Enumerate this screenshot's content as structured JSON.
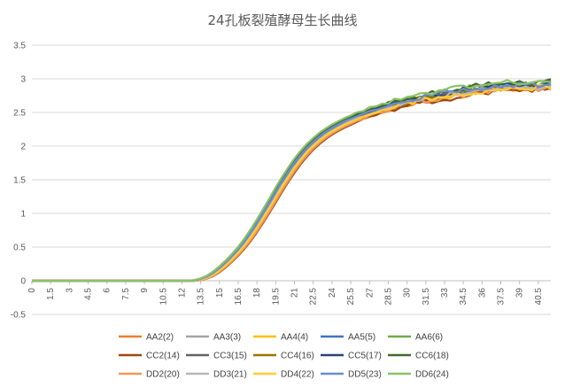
{
  "chart_data": {
    "type": "line",
    "title": "24孔板裂殖酵母生长曲线",
    "xlabel": "",
    "ylabel": "",
    "ylim": [
      -0.5,
      3.5
    ],
    "yticks": [
      "-0.5",
      "0",
      "0.5",
      "1",
      "1.5",
      "2",
      "2.5",
      "3",
      "3.5"
    ],
    "xrange": [
      0,
      41.5
    ],
    "xticks": [
      "0",
      "1.5",
      "3",
      "4.5",
      "6",
      "7.5",
      "9",
      "10.5",
      "12",
      "13.5",
      "15",
      "16.5",
      "18",
      "19.5",
      "21",
      "22.5",
      "24",
      "25.5",
      "27",
      "28.5",
      "30",
      "31.5",
      "33",
      "34.5",
      "36",
      "37.5",
      "39",
      "40.5"
    ],
    "grid": true,
    "legend_position": "bottom",
    "x_step": 0.5,
    "reference_curve": [
      [
        0,
        0
      ],
      [
        13,
        0
      ],
      [
        13.5,
        0.02
      ],
      [
        14,
        0.05
      ],
      [
        14.5,
        0.1
      ],
      [
        15,
        0.17
      ],
      [
        15.5,
        0.25
      ],
      [
        16,
        0.34
      ],
      [
        16.5,
        0.44
      ],
      [
        17,
        0.55
      ],
      [
        17.5,
        0.68
      ],
      [
        18,
        0.82
      ],
      [
        18.5,
        0.97
      ],
      [
        19,
        1.12
      ],
      [
        19.5,
        1.28
      ],
      [
        20,
        1.44
      ],
      [
        20.5,
        1.58
      ],
      [
        21,
        1.72
      ],
      [
        21.5,
        1.84
      ],
      [
        22,
        1.95
      ],
      [
        22.5,
        2.04
      ],
      [
        23,
        2.12
      ],
      [
        23.5,
        2.19
      ],
      [
        24,
        2.25
      ],
      [
        25,
        2.35
      ],
      [
        26,
        2.43
      ],
      [
        27,
        2.5
      ],
      [
        28,
        2.56
      ],
      [
        29,
        2.62
      ],
      [
        30,
        2.67
      ],
      [
        31,
        2.71
      ],
      [
        32,
        2.74
      ],
      [
        33,
        2.77
      ],
      [
        34,
        2.8
      ],
      [
        35,
        2.83
      ],
      [
        36,
        2.85
      ],
      [
        37,
        2.87
      ],
      [
        38,
        2.88
      ],
      [
        39,
        2.89
      ],
      [
        40,
        2.9
      ],
      [
        41,
        2.91
      ],
      [
        41.5,
        2.92
      ]
    ],
    "series": [
      {
        "name": "AA2(2)",
        "color": "#ED7D31",
        "shift": 0.2,
        "scale": 0.985,
        "seed": 1
      },
      {
        "name": "AA3(3)",
        "color": "#A5A5A5",
        "shift": 0.05,
        "scale": 0.995,
        "seed": 2
      },
      {
        "name": "AA4(4)",
        "color": "#FFC000",
        "shift": 0.1,
        "scale": 0.99,
        "seed": 3
      },
      {
        "name": "AA5(5)",
        "color": "#4472C4",
        "shift": -0.05,
        "scale": 1.0,
        "seed": 4
      },
      {
        "name": "AA6(6)",
        "color": "#70AD47",
        "shift": -0.15,
        "scale": 1.01,
        "seed": 5
      },
      {
        "name": "CC2(14)",
        "color": "#9E480E",
        "shift": 0.3,
        "scale": 0.98,
        "seed": 6
      },
      {
        "name": "CC3(15)",
        "color": "#636363",
        "shift": 0.0,
        "scale": 1.0,
        "seed": 7
      },
      {
        "name": "CC4(16)",
        "color": "#997300",
        "shift": 0.15,
        "scale": 0.995,
        "seed": 8
      },
      {
        "name": "CC5(17)",
        "color": "#264478",
        "shift": -0.1,
        "scale": 1.005,
        "seed": 9
      },
      {
        "name": "CC6(18)",
        "color": "#43682B",
        "shift": -0.2,
        "scale": 1.015,
        "seed": 10
      },
      {
        "name": "DD2(20)",
        "color": "#F1975A",
        "shift": 0.25,
        "scale": 0.985,
        "seed": 11
      },
      {
        "name": "DD3(21)",
        "color": "#B7B7B7",
        "shift": 0.05,
        "scale": 0.995,
        "seed": 12
      },
      {
        "name": "DD4(22)",
        "color": "#FFCD33",
        "shift": 0.1,
        "scale": 0.99,
        "seed": 13
      },
      {
        "name": "DD5(23)",
        "color": "#698ED0",
        "shift": -0.1,
        "scale": 1.005,
        "seed": 14
      },
      {
        "name": "DD6(24)",
        "color": "#8CC168",
        "shift": -0.25,
        "scale": 1.02,
        "seed": 15
      }
    ]
  }
}
